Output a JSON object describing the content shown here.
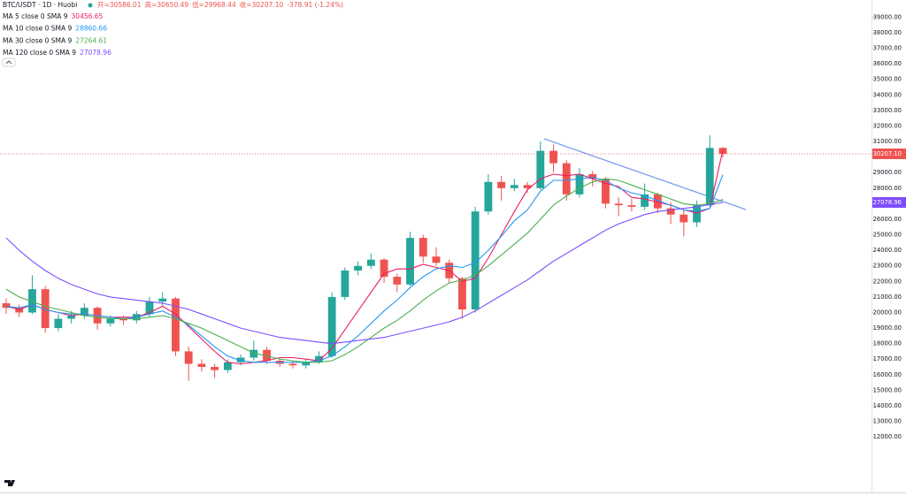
{
  "chart_data": {
    "type": "candlestick",
    "title": "BTC/USDT · 1D · Huobi",
    "ohlc_labels": [
      "开=30586.01",
      "高=30650.49",
      "低=29968.44",
      "收=30207.10"
    ],
    "change_label": "-378.91 (-1.24%)",
    "up_color": "#26a69a",
    "down_color": "#ef5350",
    "candles": {
      "open": [
        20600,
        20300,
        20000,
        21500,
        19000,
        19600,
        19800,
        20300,
        19300,
        19600,
        19500,
        19900,
        20700,
        20900,
        17500,
        16700,
        16500,
        16300,
        16800,
        17100,
        17600,
        16900,
        16700,
        16600,
        16800,
        17200,
        21000,
        22700,
        23000,
        23400,
        22300,
        21800,
        24800,
        23600,
        23200,
        22200,
        20200,
        26500,
        28400,
        28000,
        28200,
        28000,
        30400,
        29600,
        27600,
        28900,
        28600,
        27000,
        26900,
        26800,
        27600,
        26700,
        26300,
        25800,
        26900,
        30586.01
      ],
      "high": [
        20900,
        20500,
        22400,
        21700,
        19900,
        20100,
        20600,
        20400,
        19800,
        19800,
        20100,
        21000,
        21300,
        21000,
        17800,
        17000,
        16700,
        17000,
        17300,
        18200,
        17800,
        17000,
        16900,
        17000,
        17500,
        21300,
        22900,
        23300,
        23800,
        23500,
        22500,
        25200,
        25000,
        24200,
        23400,
        22300,
        26800,
        28900,
        28800,
        28600,
        28400,
        31000,
        30800,
        29800,
        29300,
        29100,
        28700,
        27400,
        27300,
        28300,
        27700,
        27100,
        26600,
        27200,
        31400,
        30650.49
      ],
      "low": [
        19900,
        19700,
        19900,
        18700,
        18800,
        19300,
        19600,
        18900,
        19100,
        19200,
        19300,
        19700,
        20400,
        17200,
        15600,
        16200,
        15800,
        16100,
        16600,
        16900,
        16700,
        16500,
        16400,
        16400,
        16700,
        17100,
        20800,
        22400,
        22800,
        21900,
        21300,
        21700,
        23200,
        23000,
        21900,
        19600,
        20000,
        26300,
        27200,
        27800,
        27700,
        27900,
        29000,
        27200,
        27400,
        28100,
        26700,
        26200,
        26500,
        26600,
        26400,
        25700,
        24900,
        25500,
        26800,
        29968.44
      ],
      "close": [
        20300,
        20000,
        21500,
        19000,
        19600,
        19800,
        20300,
        19300,
        19600,
        19500,
        19900,
        20700,
        20900,
        17500,
        16700,
        16500,
        16300,
        16800,
        17100,
        17600,
        16900,
        16700,
        16600,
        16800,
        17200,
        21000,
        22700,
        23000,
        23400,
        22300,
        21800,
        24800,
        23600,
        23200,
        22200,
        20200,
        26500,
        28400,
        28000,
        28200,
        28000,
        30400,
        29600,
        27600,
        28900,
        28600,
        27000,
        26900,
        26800,
        27600,
        26700,
        26300,
        25800,
        26900,
        30586.01,
        30207.1
      ]
    },
    "series": [
      {
        "name": "MA 5 close 0 SMA 9",
        "color": "#e91e63",
        "value_label": "30456.65",
        "values": [
          20400,
          20200,
          20500,
          20200,
          20000,
          19800,
          19900,
          19800,
          19700,
          19700,
          19700,
          20000,
          20400,
          19900,
          19100,
          18300,
          17500,
          16800,
          16700,
          16800,
          16900,
          17100,
          17100,
          17000,
          16900,
          17700,
          18900,
          20100,
          21300,
          22500,
          22800,
          22800,
          23100,
          22900,
          22700,
          22000,
          22200,
          23500,
          25000,
          26500,
          27900,
          28600,
          28900,
          28800,
          28900,
          28600,
          28300,
          28100,
          27400,
          27300,
          27100,
          26900,
          26600,
          26400,
          26700,
          30456.65
        ]
      },
      {
        "name": "MA 10 close 0 SMA 9",
        "color": "#2196f3",
        "value_label": "28860.66",
        "values": [
          20400,
          20300,
          20500,
          20200,
          20000,
          19900,
          19900,
          19800,
          19700,
          19600,
          19700,
          19900,
          20100,
          19700,
          19200,
          18500,
          17800,
          17200,
          16900,
          16800,
          16800,
          16800,
          16800,
          16800,
          16900,
          17200,
          17800,
          18500,
          19300,
          20100,
          20800,
          21600,
          22300,
          22800,
          23000,
          22900,
          23200,
          24000,
          24900,
          25900,
          26600,
          27800,
          28500,
          28500,
          28600,
          28700,
          28500,
          28000,
          27700,
          27500,
          27200,
          26900,
          26600,
          26500,
          26700,
          28860.66
        ]
      },
      {
        "name": "MA 30 close 0 SMA 9",
        "color": "#4caf50",
        "value_label": "27264.61",
        "values": [
          21500,
          21000,
          20700,
          20400,
          20200,
          20000,
          19800,
          19700,
          19600,
          19600,
          19600,
          19700,
          19800,
          19600,
          19300,
          19000,
          18600,
          18200,
          17800,
          17400,
          17200,
          17000,
          16900,
          16800,
          16800,
          16900,
          17300,
          17800,
          18400,
          19000,
          19500,
          20100,
          20800,
          21400,
          21900,
          22100,
          22400,
          23000,
          23700,
          24400,
          25100,
          26000,
          26900,
          27500,
          28000,
          28400,
          28600,
          28500,
          28200,
          27900,
          27600,
          27300,
          27000,
          26900,
          27000,
          27264.61
        ]
      },
      {
        "name": "MA 120 close 0 SMA 9",
        "color": "#7c4dff",
        "value_label": "27078.96",
        "values": [
          24800,
          24000,
          23300,
          22700,
          22200,
          21800,
          21500,
          21200,
          21000,
          20900,
          20800,
          20700,
          20600,
          20400,
          20200,
          19900,
          19600,
          19300,
          19000,
          18800,
          18600,
          18400,
          18300,
          18200,
          18100,
          18000,
          18100,
          18200,
          18300,
          18400,
          18600,
          18800,
          19000,
          19200,
          19400,
          19700,
          20100,
          20600,
          21100,
          21600,
          22100,
          22700,
          23300,
          23800,
          24300,
          24800,
          25300,
          25700,
          26000,
          26300,
          26500,
          26600,
          26700,
          26800,
          26950,
          27078.96
        ]
      }
    ],
    "price_labels": {
      "last": "30207.10",
      "ma120": "27078.96"
    },
    "ylim": [
      8200,
      40100
    ],
    "yticks": [
      {
        "value": 12000,
        "label": "12000.00"
      },
      {
        "value": 13000,
        "label": "13000.00"
      },
      {
        "value": 14000,
        "label": "14000.00"
      },
      {
        "value": 15000,
        "label": "15000.00"
      },
      {
        "value": 16000,
        "label": "16000.00"
      },
      {
        "value": 17000,
        "label": "17000.00"
      },
      {
        "value": 18000,
        "label": "18000.00"
      },
      {
        "value": 19000,
        "label": "19000.00"
      },
      {
        "value": 20000,
        "label": "20000.00"
      },
      {
        "value": 21000,
        "label": "21000.00"
      },
      {
        "value": 22000,
        "label": "22000.00"
      },
      {
        "value": 23000,
        "label": "23000.00"
      },
      {
        "value": 24000,
        "label": "24000.00"
      },
      {
        "value": 25000,
        "label": "25000.00"
      },
      {
        "value": 26000,
        "label": "26000.00"
      },
      {
        "value": 27000,
        "label": "27000.00"
      },
      {
        "value": 28000,
        "label": "28000.00"
      },
      {
        "value": 29000,
        "label": "29000.00"
      },
      {
        "value": 31000,
        "label": "31000.00"
      },
      {
        "value": 32000,
        "label": "32000.00"
      },
      {
        "value": 33000,
        "label": "33000.00"
      },
      {
        "value": 34000,
        "label": "34000.00"
      },
      {
        "value": 35000,
        "label": "35000.00"
      },
      {
        "value": 36000,
        "label": "36000.00"
      },
      {
        "value": 37000,
        "label": "37000.00"
      },
      {
        "value": 38000,
        "label": "38000.00"
      },
      {
        "value": 39000,
        "label": "39000.00"
      }
    ]
  }
}
